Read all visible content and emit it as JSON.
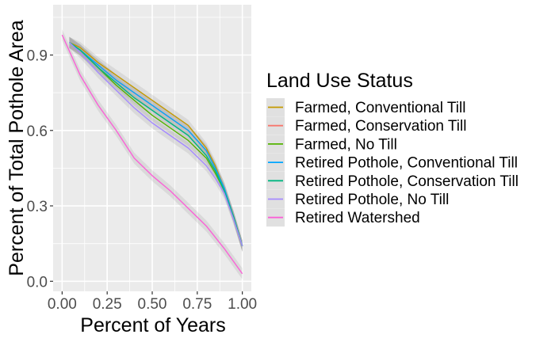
{
  "chart_data": {
    "type": "line",
    "xlabel": "Percent of Years",
    "ylabel": "Percent of Total Pothole Area",
    "xlim": [
      -0.05,
      1.05
    ],
    "ylim": [
      -0.04,
      1.1
    ],
    "xticks": [
      0,
      0.25,
      0.5,
      0.75,
      1
    ],
    "xtick_labels": [
      "0.00",
      "0.25",
      "0.50",
      "0.75",
      "1.00"
    ],
    "yticks": [
      0,
      0.3,
      0.6,
      0.9
    ],
    "ytick_labels": [
      "0.0",
      "0.3",
      "0.6",
      "0.9"
    ],
    "grid": true,
    "legend": {
      "title": "Land Use Status",
      "position": "right"
    },
    "series": [
      {
        "name": "Farmed, Conventional Till",
        "color": "#C49A00",
        "x": [
          0.04,
          0.1,
          0.2,
          0.3,
          0.4,
          0.5,
          0.6,
          0.7,
          0.8,
          0.85,
          0.9,
          0.95,
          1.0
        ],
        "y": [
          0.95,
          0.93,
          0.87,
          0.82,
          0.77,
          0.72,
          0.67,
          0.62,
          0.53,
          0.46,
          0.37,
          0.26,
          0.14
        ]
      },
      {
        "name": "Farmed, Conservation Till",
        "color": "#F8766D",
        "x": [
          0.04,
          0.1,
          0.2,
          0.3,
          0.4,
          0.5,
          0.6,
          0.7,
          0.8,
          0.85,
          0.9,
          0.95,
          1.0
        ],
        "y": [
          0.95,
          0.92,
          0.86,
          0.8,
          0.75,
          0.7,
          0.65,
          0.6,
          0.52,
          0.45,
          0.37,
          0.26,
          0.14
        ]
      },
      {
        "name": "Farmed, No Till",
        "color": "#53B400",
        "x": [
          0.04,
          0.1,
          0.2,
          0.3,
          0.4,
          0.5,
          0.6,
          0.7,
          0.8,
          0.85,
          0.9,
          0.95,
          1.0
        ],
        "y": [
          0.95,
          0.92,
          0.85,
          0.78,
          0.72,
          0.66,
          0.61,
          0.56,
          0.49,
          0.43,
          0.36,
          0.26,
          0.14
        ]
      },
      {
        "name": "Retired Pothole, Conventional Till",
        "color": "#00A6FF",
        "x": [
          0.04,
          0.1,
          0.2,
          0.3,
          0.4,
          0.5,
          0.6,
          0.7,
          0.8,
          0.85,
          0.9,
          0.95,
          1.0
        ],
        "y": [
          0.95,
          0.92,
          0.86,
          0.8,
          0.75,
          0.7,
          0.65,
          0.6,
          0.52,
          0.45,
          0.37,
          0.26,
          0.14
        ]
      },
      {
        "name": "Retired Pothole, Conservation Till",
        "color": "#00B681",
        "x": [
          0.04,
          0.1,
          0.2,
          0.3,
          0.4,
          0.5,
          0.6,
          0.7,
          0.8,
          0.85,
          0.9,
          0.95,
          1.0
        ],
        "y": [
          0.95,
          0.92,
          0.85,
          0.79,
          0.73,
          0.68,
          0.63,
          0.58,
          0.5,
          0.44,
          0.36,
          0.26,
          0.14
        ]
      },
      {
        "name": "Retired Pothole, No Till",
        "color": "#A58AFF",
        "x": [
          0.04,
          0.1,
          0.2,
          0.3,
          0.4,
          0.5,
          0.6,
          0.7,
          0.8,
          0.85,
          0.9,
          0.95,
          1.0
        ],
        "y": [
          0.95,
          0.91,
          0.83,
          0.76,
          0.69,
          0.63,
          0.58,
          0.53,
          0.46,
          0.41,
          0.35,
          0.25,
          0.14
        ]
      },
      {
        "name": "Retired Watershed",
        "color": "#FB61D7",
        "x": [
          0.0,
          0.05,
          0.1,
          0.15,
          0.2,
          0.3,
          0.4,
          0.5,
          0.6,
          0.7,
          0.8,
          0.9,
          1.0
        ],
        "y": [
          0.98,
          0.9,
          0.82,
          0.76,
          0.7,
          0.6,
          0.49,
          0.42,
          0.36,
          0.29,
          0.22,
          0.13,
          0.03
        ]
      }
    ]
  }
}
